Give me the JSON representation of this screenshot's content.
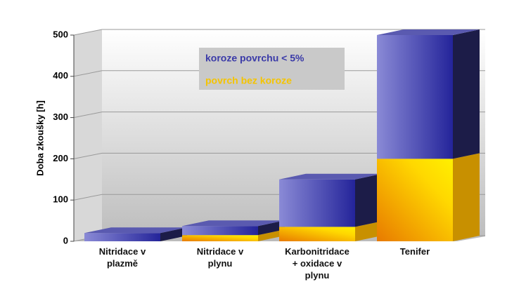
{
  "chart_data": {
    "type": "bar3d_stacked",
    "y_label": "Doba zkoušky  [h]",
    "categories": [
      "Nitridace v\nplazmě",
      "Nitridace v\nplynu",
      "Karbonitridace\n+ oxidace v\nplynu",
      "Tenifer"
    ],
    "series": [
      {
        "name": "povrch bez koroze",
        "color": "#f5c400",
        "values": [
          0,
          15,
          35,
          200
        ]
      },
      {
        "name": "koroze povrchu < 5%",
        "color": "#3a3aa8",
        "values": [
          20,
          22,
          115,
          300
        ]
      }
    ],
    "ylim": [
      0,
      500
    ],
    "yticks": [
      0,
      100,
      200,
      300,
      400,
      500
    ],
    "grid": true
  }
}
